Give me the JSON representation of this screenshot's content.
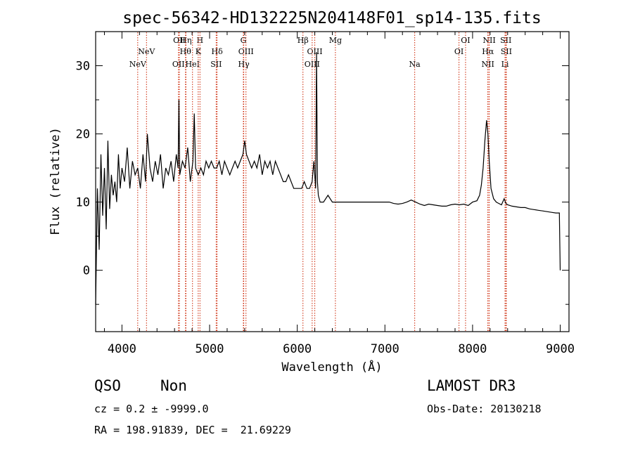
{
  "chart_data": {
    "type": "line",
    "title": "spec-56342-HD132225N204148F01_sp14-135.fits",
    "xlabel": "Wavelength (Å)",
    "ylabel": "Flux (relative)",
    "xlim": [
      3700,
      9100
    ],
    "ylim": [
      -9,
      35
    ],
    "xticks": [
      4000,
      5000,
      6000,
      7000,
      8000,
      9000
    ],
    "yticks": [
      0,
      10,
      20,
      30
    ],
    "series": [
      {
        "name": "spectrum",
        "x": [
          3700,
          3720,
          3740,
          3760,
          3780,
          3800,
          3820,
          3840,
          3860,
          3880,
          3900,
          3920,
          3940,
          3960,
          3980,
          4000,
          4030,
          4060,
          4090,
          4120,
          4150,
          4180,
          4210,
          4240,
          4270,
          4290,
          4320,
          4350,
          4380,
          4410,
          4440,
          4470,
          4500,
          4530,
          4560,
          4590,
          4620,
          4640,
          4650,
          4660,
          4690,
          4720,
          4750,
          4780,
          4810,
          4825,
          4840,
          4870,
          4900,
          4930,
          4960,
          4990,
          5020,
          5050,
          5080,
          5110,
          5140,
          5170,
          5200,
          5230,
          5260,
          5290,
          5320,
          5350,
          5380,
          5400,
          5420,
          5450,
          5480,
          5510,
          5540,
          5570,
          5600,
          5630,
          5660,
          5690,
          5720,
          5750,
          5780,
          5810,
          5840,
          5870,
          5900,
          5930,
          5960,
          5990,
          6020,
          6050,
          6080,
          6110,
          6140,
          6170,
          6190,
          6210,
          6220,
          6230,
          6240,
          6260,
          6300,
          6350,
          6400,
          6450,
          6500,
          6550,
          6600,
          6650,
          6700,
          6750,
          6800,
          6850,
          6900,
          6950,
          7000,
          7050,
          7100,
          7150,
          7200,
          7250,
          7300,
          7350,
          7400,
          7450,
          7500,
          7550,
          7600,
          7650,
          7700,
          7750,
          7800,
          7850,
          7900,
          7950,
          8000,
          8050,
          8080,
          8100,
          8120,
          8140,
          8160,
          8175,
          8190,
          8210,
          8240,
          8270,
          8300,
          8330,
          8360,
          8380,
          8400,
          8450,
          8500,
          8550,
          8600,
          8650,
          8700,
          8750,
          8800,
          8850,
          8900,
          8950,
          8990,
          9000
        ],
        "y": [
          -5,
          12,
          3,
          17,
          8,
          15,
          6,
          19,
          9,
          14,
          11,
          13,
          10,
          17,
          12,
          15,
          13,
          18,
          12,
          16,
          14,
          15,
          12,
          17,
          13,
          20,
          15,
          13,
          16,
          14,
          17,
          12,
          15,
          14,
          16,
          13,
          17,
          15,
          25,
          14,
          16,
          15,
          18,
          13,
          16,
          23,
          15,
          14,
          15,
          14,
          16,
          15,
          16,
          15,
          15,
          16,
          14,
          16,
          15,
          14,
          15,
          16,
          15,
          16,
          17,
          19,
          17,
          16,
          15,
          16,
          15,
          17,
          14,
          16,
          15,
          16,
          14,
          16,
          15,
          14,
          13,
          13,
          14,
          13,
          12,
          12,
          12,
          12,
          13,
          12,
          12,
          13,
          16,
          12,
          32,
          13,
          11,
          10,
          10,
          11,
          10,
          10,
          10,
          10,
          10,
          10,
          10,
          10,
          10,
          10,
          10,
          10,
          10,
          10,
          9.8,
          9.7,
          9.8,
          10,
          10.3,
          10,
          9.7,
          9.5,
          9.7,
          9.6,
          9.5,
          9.4,
          9.4,
          9.6,
          9.7,
          9.6,
          9.7,
          9.5,
          10,
          10.2,
          11,
          12.5,
          15,
          19,
          22,
          20,
          16,
          12,
          10.5,
          10,
          9.8,
          9.6,
          10.5,
          9.8,
          9.6,
          9.4,
          9.3,
          9.2,
          9.2,
          9.0,
          8.9,
          8.8,
          8.7,
          8.6,
          8.5,
          8.4,
          8.4,
          0
        ]
      }
    ],
    "lines": [
      {
        "name": "NeV",
        "wl": 4180,
        "row": 2
      },
      {
        "name": "NeV",
        "wl": 4280,
        "row": 1
      },
      {
        "name": "OII",
        "wl": 4645,
        "row": 2
      },
      {
        "name": "OII",
        "wl": 4655,
        "row": 0
      },
      {
        "name": "Hη",
        "wl": 4730,
        "row": 0
      },
      {
        "name": "Hθ",
        "wl": 4725,
        "row": 1
      },
      {
        "name": "HeI",
        "wl": 4805,
        "row": 2
      },
      {
        "name": "H",
        "wl": 4890,
        "row": 0
      },
      {
        "name": "K",
        "wl": 4870,
        "row": 1
      },
      {
        "name": "Hδ",
        "wl": 5085,
        "row": 1
      },
      {
        "name": "SII",
        "wl": 5075,
        "row": 2
      },
      {
        "name": "G",
        "wl": 5385,
        "row": 0
      },
      {
        "name": "OIII",
        "wl": 5415,
        "row": 1
      },
      {
        "name": "Hγ",
        "wl": 5390,
        "row": 2
      },
      {
        "name": "Hβ",
        "wl": 6065,
        "row": 0
      },
      {
        "name": "OIII",
        "wl": 6200,
        "row": 1
      },
      {
        "name": "OIII",
        "wl": 6170,
        "row": 2
      },
      {
        "name": "Mg",
        "wl": 6435,
        "row": 0
      },
      {
        "name": "Na",
        "wl": 7340,
        "row": 2
      },
      {
        "name": "OI",
        "wl": 7920,
        "row": 0
      },
      {
        "name": "OI",
        "wl": 7845,
        "row": 1
      },
      {
        "name": "NII",
        "wl": 8190,
        "row": 0
      },
      {
        "name": "Hα",
        "wl": 8175,
        "row": 1
      },
      {
        "name": "NII",
        "wl": 8175,
        "row": 2
      },
      {
        "name": "SII",
        "wl": 8380,
        "row": 0
      },
      {
        "name": "SII",
        "wl": 8385,
        "row": 1
      },
      {
        "name": "Li",
        "wl": 8370,
        "row": 2
      }
    ],
    "line_color": "#cc2200"
  },
  "info": {
    "object_class": "QSO",
    "object_subclass": "Non",
    "cz": "cz = 0.2 ± -9999.0",
    "coords": "RA = 198.91839, DEC =  21.69229",
    "survey": "LAMOST DR3",
    "obs_date": "Obs-Date: 20130218"
  }
}
